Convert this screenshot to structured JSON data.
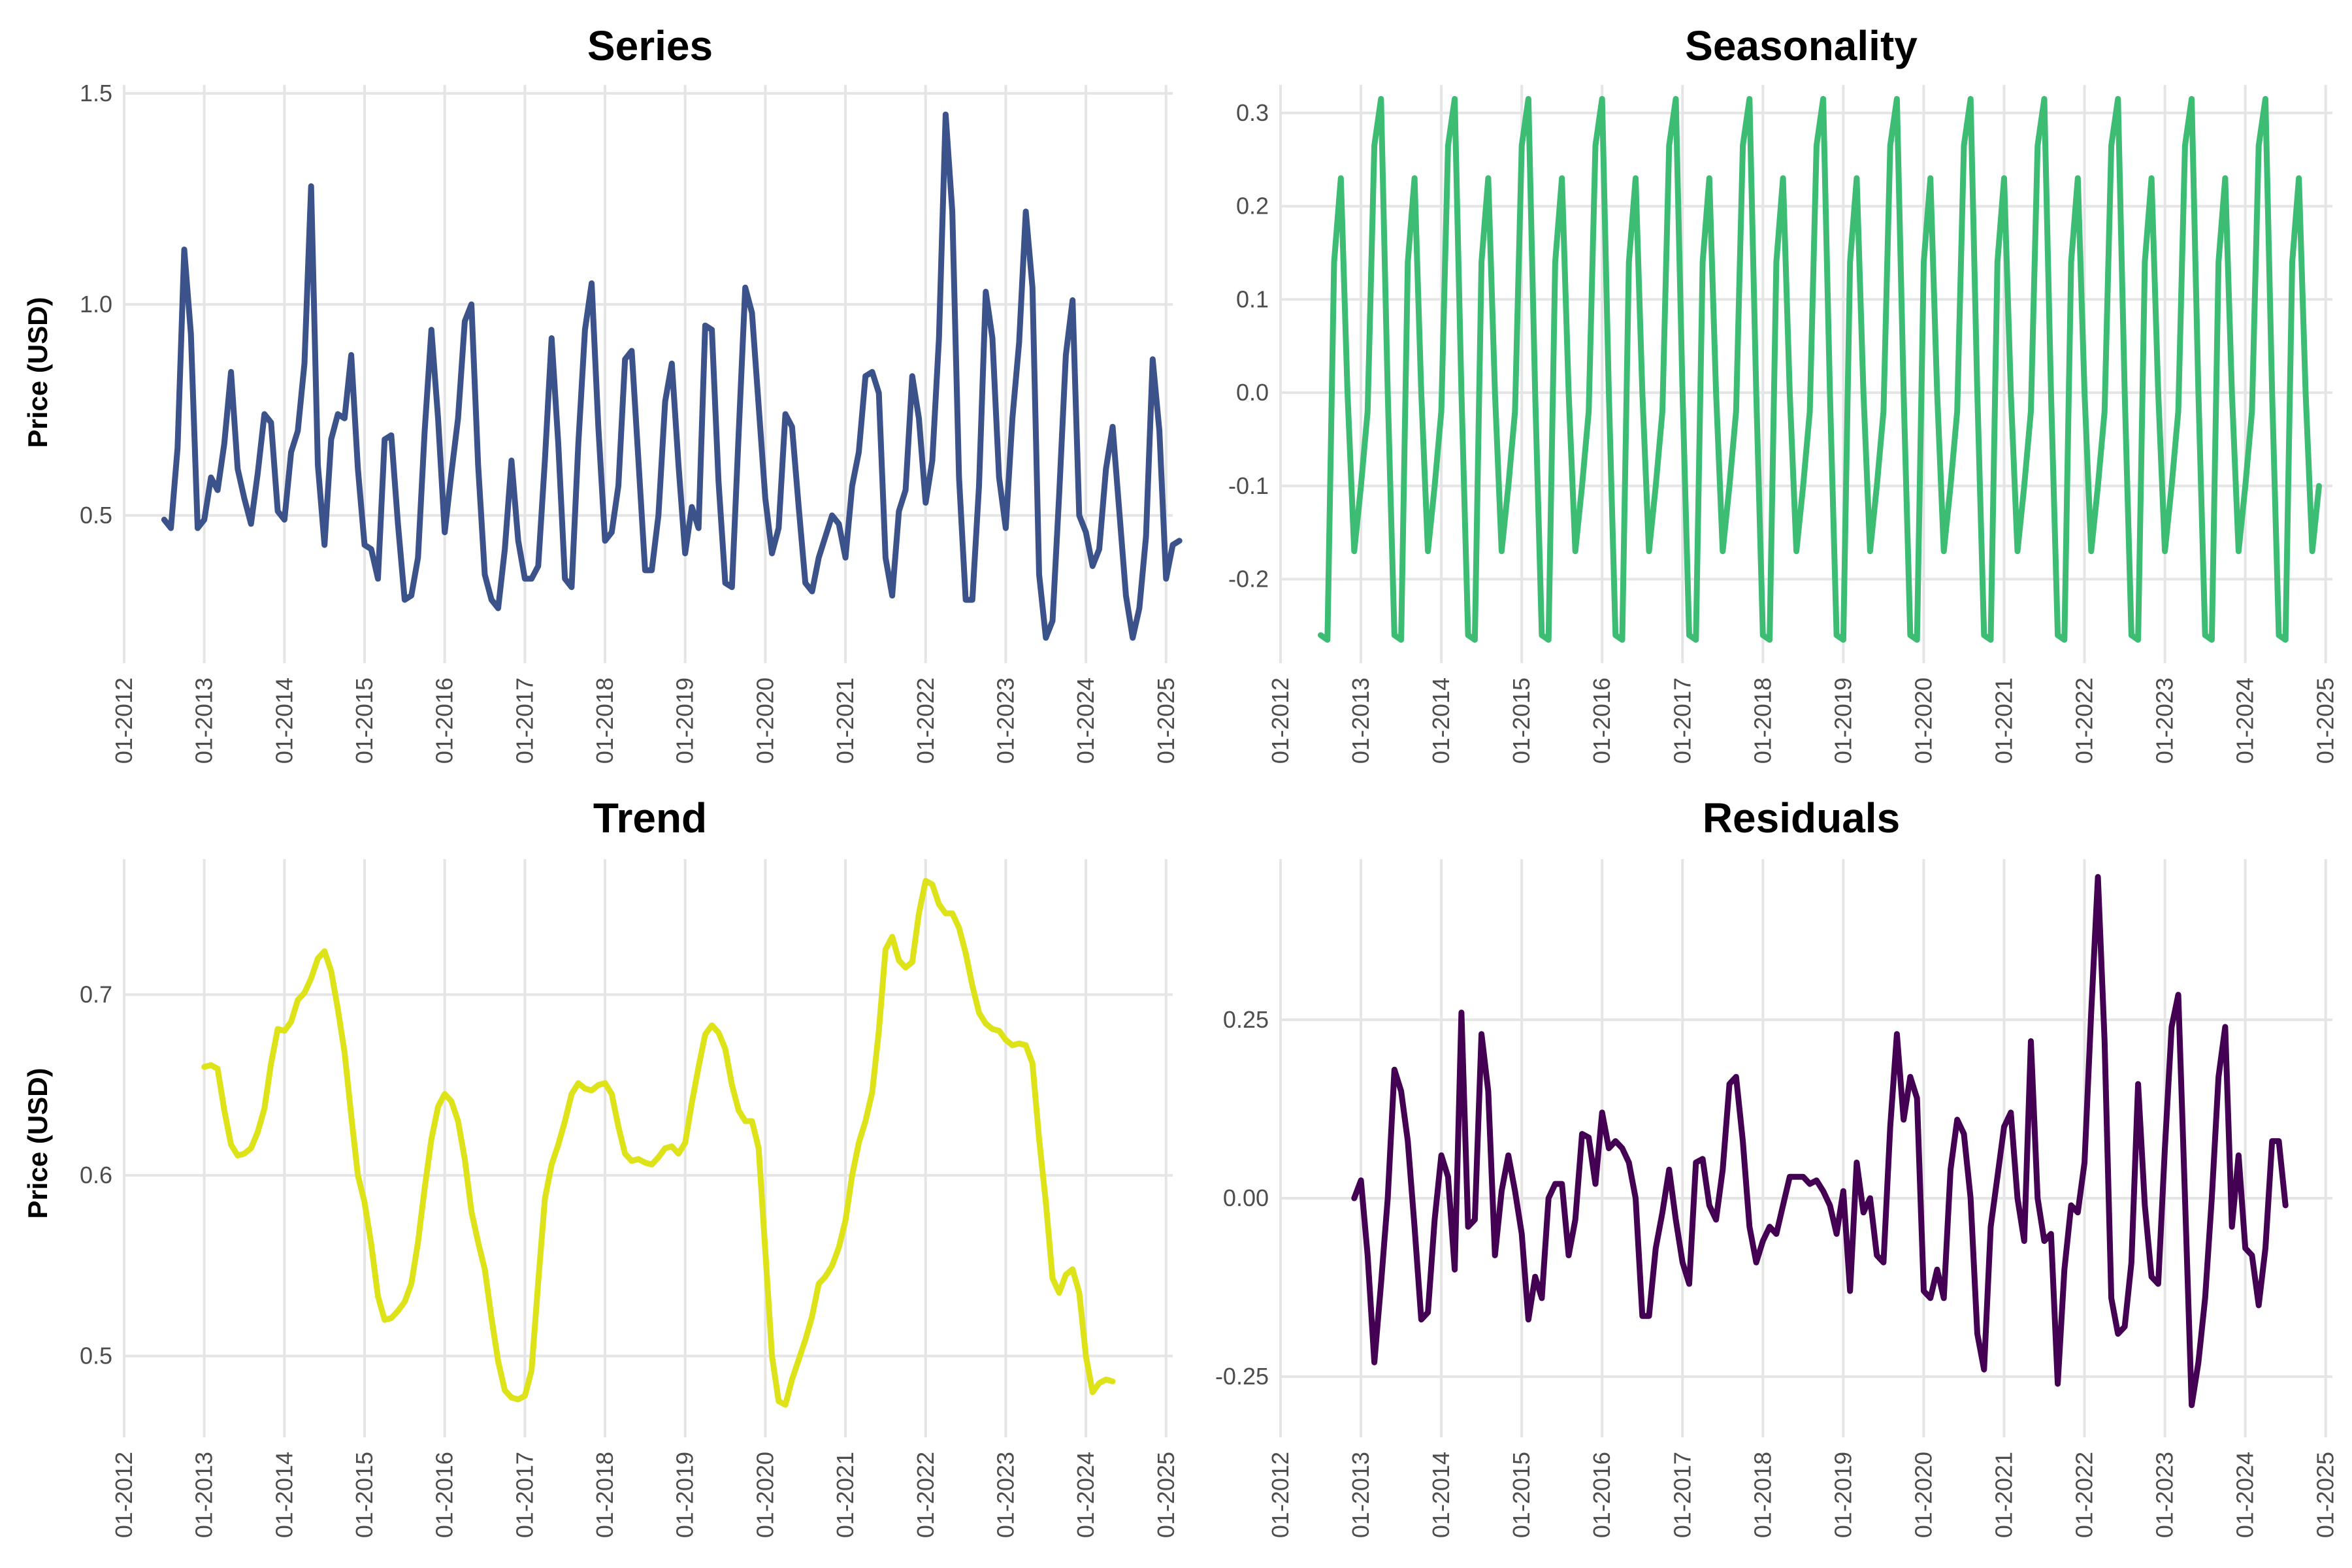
{
  "figure": {
    "x_tick_labels": [
      "01-2012",
      "01-2013",
      "01-2014",
      "01-2015",
      "01-2016",
      "01-2017",
      "01-2018",
      "01-2019",
      "01-2020",
      "01-2021",
      "01-2022",
      "01-2023",
      "01-2024",
      "01-2025"
    ]
  },
  "chart_data": [
    {
      "type": "line",
      "title": "Series",
      "xlabel": "",
      "ylabel": "Price (USD)",
      "color": "#3b528b",
      "x_range": [
        "2012-01",
        "2025-02"
      ],
      "ylim": [
        0.15,
        1.52
      ],
      "y_ticks": [
        0.5,
        1.0,
        1.5
      ],
      "y_tick_labels": [
        "0.5",
        "1.0",
        "1.5"
      ],
      "grid": true,
      "legend": "none",
      "series": [
        {
          "start": "2012-07",
          "values": [
            0.49,
            0.47,
            0.66,
            1.13,
            0.93,
            0.47,
            0.49,
            0.59,
            0.56,
            0.67,
            0.84,
            0.61,
            0.54,
            0.48,
            0.6,
            0.74,
            0.72,
            0.51,
            0.49,
            0.65,
            0.7,
            0.86,
            1.28,
            0.62,
            0.43,
            0.68,
            0.74,
            0.73,
            0.88,
            0.61,
            0.43,
            0.42,
            0.35,
            0.68,
            0.69,
            0.48,
            0.3,
            0.31,
            0.4,
            0.7,
            0.94,
            0.73,
            0.46,
            0.6,
            0.73,
            0.96,
            1.0,
            0.62,
            0.36,
            0.3,
            0.28,
            0.42,
            0.63,
            0.44,
            0.35,
            0.35,
            0.38,
            0.63,
            0.92,
            0.67,
            0.35,
            0.33,
            0.67,
            0.94,
            1.05,
            0.71,
            0.44,
            0.46,
            0.57,
            0.87,
            0.89,
            0.63,
            0.37,
            0.37,
            0.5,
            0.77,
            0.86,
            0.62,
            0.41,
            0.52,
            0.47,
            0.95,
            0.94,
            0.58,
            0.34,
            0.33,
            0.69,
            1.04,
            0.98,
            0.76,
            0.54,
            0.41,
            0.47,
            0.74,
            0.71,
            0.52,
            0.34,
            0.32,
            0.4,
            0.45,
            0.5,
            0.48,
            0.4,
            0.57,
            0.65,
            0.83,
            0.84,
            0.79,
            0.4,
            0.31,
            0.51,
            0.56,
            0.83,
            0.73,
            0.53,
            0.63,
            0.92,
            1.45,
            1.22,
            0.59,
            0.3,
            0.3,
            0.57,
            1.03,
            0.92,
            0.59,
            0.47,
            0.73,
            0.91,
            1.22,
            1.04,
            0.36,
            0.21,
            0.25,
            0.55,
            0.88,
            1.01,
            0.5,
            0.46,
            0.38,
            0.42,
            0.61,
            0.71,
            0.51,
            0.31,
            0.21,
            0.28,
            0.45,
            0.87,
            0.7,
            0.35,
            0.43,
            0.44
          ]
        }
      ]
    },
    {
      "type": "line",
      "title": "Seasonality",
      "xlabel": "",
      "ylabel": "",
      "color": "#3dbc74",
      "x_range": [
        "2012-01",
        "2025-02"
      ],
      "ylim": [
        -0.29,
        0.33
      ],
      "y_ticks": [
        -0.2,
        -0.1,
        0.0,
        0.1,
        0.2,
        0.3
      ],
      "y_tick_labels": [
        "-0.2",
        "-0.1",
        "0.0",
        "0.1",
        "0.2",
        "0.3"
      ],
      "grid": true,
      "legend": "none",
      "series": [
        {
          "start": "2012-07",
          "values": [
            -0.26,
            -0.265,
            0.14,
            0.23,
            0.0,
            -0.17,
            -0.1,
            -0.02,
            0.265,
            0.315,
            0.0,
            -0.26,
            -0.265,
            0.14,
            0.23,
            0.0,
            -0.17,
            -0.1,
            -0.02,
            0.265,
            0.315,
            0.0,
            -0.26,
            -0.265,
            0.14,
            0.23,
            0.0,
            -0.17,
            -0.1,
            -0.02,
            0.265,
            0.315,
            0.0,
            -0.26,
            -0.265,
            0.14,
            0.23,
            0.0,
            -0.17,
            -0.1,
            -0.02,
            0.265,
            0.315,
            0.0,
            -0.26,
            -0.265,
            0.14,
            0.23,
            0.0,
            -0.17,
            -0.1,
            -0.02,
            0.265,
            0.315,
            0.0,
            -0.26,
            -0.265,
            0.14,
            0.23,
            0.0,
            -0.17,
            -0.1,
            -0.02,
            0.265,
            0.315,
            0.0,
            -0.26,
            -0.265,
            0.14,
            0.23,
            0.0,
            -0.17,
            -0.1,
            -0.02,
            0.265,
            0.315,
            0.0,
            -0.26,
            -0.265,
            0.14,
            0.23,
            0.0,
            -0.17,
            -0.1,
            -0.02,
            0.265,
            0.315,
            0.0,
            -0.26,
            -0.265,
            0.14,
            0.23,
            0.0,
            -0.17,
            -0.1,
            -0.02,
            0.265,
            0.315,
            0.0,
            -0.26,
            -0.265,
            0.14,
            0.23,
            0.0,
            -0.17,
            -0.1,
            -0.02,
            0.265,
            0.315,
            0.0,
            -0.26,
            -0.265,
            0.14,
            0.23,
            0.0,
            -0.17,
            -0.1,
            -0.02,
            0.265,
            0.315,
            0.0,
            -0.26,
            -0.265,
            0.14,
            0.23,
            0.0,
            -0.17,
            -0.1,
            -0.02,
            0.265,
            0.315,
            0.0,
            -0.26,
            -0.265,
            0.14,
            0.23,
            0.0,
            -0.17,
            -0.1,
            -0.02,
            0.265,
            0.315,
            0.0,
            -0.26,
            -0.265,
            0.14,
            0.23,
            0.0,
            -0.17,
            -0.1
          ]
        }
      ]
    },
    {
      "type": "line",
      "title": "Trend",
      "xlabel": "",
      "ylabel": "Price (USD)",
      "color": "#dde318",
      "x_range": [
        "2012-01",
        "2025-02"
      ],
      "ylim": [
        0.455,
        0.775
      ],
      "y_ticks": [
        0.5,
        0.6,
        0.7
      ],
      "y_tick_labels": [
        "0.5",
        "0.6",
        "0.7"
      ],
      "grid": true,
      "legend": "none",
      "series": [
        {
          "start": "2013-01",
          "values": [
            0.66,
            0.661,
            0.659,
            0.636,
            0.617,
            0.611,
            0.612,
            0.615,
            0.624,
            0.637,
            0.662,
            0.681,
            0.68,
            0.685,
            0.697,
            0.701,
            0.709,
            0.72,
            0.724,
            0.713,
            0.692,
            0.668,
            0.633,
            0.6,
            0.585,
            0.562,
            0.533,
            0.52,
            0.521,
            0.525,
            0.53,
            0.54,
            0.563,
            0.593,
            0.62,
            0.638,
            0.645,
            0.641,
            0.63,
            0.609,
            0.58,
            0.563,
            0.548,
            0.521,
            0.497,
            0.481,
            0.477,
            0.476,
            0.478,
            0.492,
            0.541,
            0.587,
            0.606,
            0.617,
            0.63,
            0.645,
            0.651,
            0.648,
            0.647,
            0.65,
            0.651,
            0.645,
            0.627,
            0.612,
            0.608,
            0.609,
            0.607,
            0.606,
            0.61,
            0.615,
            0.616,
            0.612,
            0.618,
            0.64,
            0.66,
            0.678,
            0.683,
            0.679,
            0.67,
            0.65,
            0.636,
            0.63,
            0.63,
            0.615,
            0.558,
            0.5,
            0.475,
            0.473,
            0.487,
            0.498,
            0.509,
            0.522,
            0.54,
            0.544,
            0.55,
            0.56,
            0.575,
            0.6,
            0.618,
            0.63,
            0.646,
            0.68,
            0.725,
            0.732,
            0.719,
            0.715,
            0.718,
            0.745,
            0.763,
            0.761,
            0.75,
            0.745,
            0.745,
            0.737,
            0.723,
            0.705,
            0.69,
            0.684,
            0.681,
            0.68,
            0.675,
            0.672,
            0.673,
            0.672,
            0.662,
            0.62,
            0.585,
            0.543,
            0.535,
            0.545,
            0.548,
            0.535,
            0.5,
            0.48,
            0.485,
            0.487,
            0.486
          ]
        }
      ]
    },
    {
      "type": "line",
      "title": "Residuals",
      "xlabel": "",
      "ylabel": "",
      "color": "#440154",
      "x_range": [
        "2012-01",
        "2025-02"
      ],
      "ylim": [
        -0.335,
        0.475
      ],
      "y_ticks": [
        -0.25,
        0.0,
        0.25
      ],
      "y_tick_labels": [
        "-0.25",
        "0.00",
        "0.25"
      ],
      "grid": true,
      "legend": "none",
      "series": [
        {
          "start": "2012-12",
          "values": [
            0.0,
            0.025,
            -0.08,
            -0.23,
            -0.12,
            0.0,
            0.18,
            0.15,
            0.08,
            -0.04,
            -0.17,
            -0.16,
            -0.03,
            0.06,
            0.03,
            -0.1,
            0.26,
            -0.04,
            -0.03,
            0.23,
            0.15,
            -0.08,
            0.01,
            0.06,
            0.01,
            -0.05,
            -0.17,
            -0.11,
            -0.14,
            0.0,
            0.02,
            0.02,
            -0.08,
            -0.03,
            0.09,
            0.085,
            0.02,
            0.12,
            0.07,
            0.08,
            0.07,
            0.05,
            0.0,
            -0.165,
            -0.165,
            -0.07,
            -0.02,
            0.04,
            -0.03,
            -0.09,
            -0.12,
            0.05,
            0.055,
            -0.01,
            -0.03,
            0.04,
            0.16,
            0.17,
            0.08,
            -0.04,
            -0.09,
            -0.06,
            -0.04,
            -0.05,
            -0.01,
            0.03,
            0.03,
            0.03,
            0.02,
            0.025,
            0.01,
            -0.01,
            -0.05,
            0.01,
            -0.13,
            0.05,
            -0.02,
            0.0,
            -0.08,
            -0.09,
            0.1,
            0.23,
            0.11,
            0.17,
            0.14,
            -0.13,
            -0.14,
            -0.1,
            -0.14,
            0.04,
            0.11,
            0.09,
            0.0,
            -0.19,
            -0.24,
            -0.04,
            0.03,
            0.1,
            0.12,
            0.0,
            -0.06,
            0.22,
            0.0,
            -0.06,
            -0.05,
            -0.26,
            -0.1,
            -0.01,
            -0.02,
            0.05,
            0.26,
            0.45,
            0.22,
            -0.14,
            -0.19,
            -0.18,
            -0.09,
            0.16,
            -0.01,
            -0.11,
            -0.12,
            0.07,
            0.24,
            0.285,
            0.0,
            -0.29,
            -0.23,
            -0.14,
            0.0,
            0.17,
            0.24,
            -0.04,
            0.06,
            -0.07,
            -0.08,
            -0.15,
            -0.07,
            0.08,
            0.08,
            -0.01
          ]
        }
      ]
    }
  ]
}
